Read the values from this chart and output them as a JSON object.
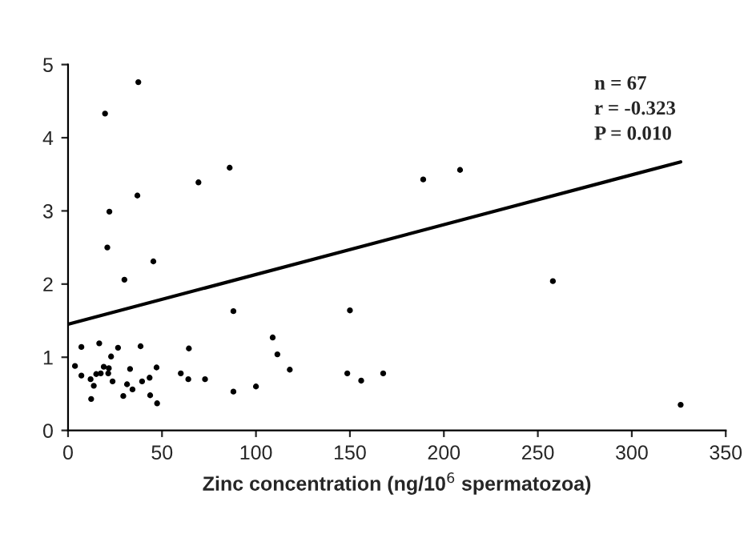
{
  "chart_data": {
    "type": "scatter",
    "xlabel": "Zinc concentration (ng/10$^{6}$ spermatozoa)",
    "xlim": [
      0,
      350
    ],
    "xticks": [
      0,
      50,
      100,
      150,
      200,
      250,
      300,
      350
    ],
    "ylim": [
      0,
      5
    ],
    "yticks": [
      0,
      1,
      2,
      3,
      4,
      5
    ],
    "grid": false,
    "annotations": [
      "n = 67\nr = -0.323\nP = 0.010"
    ],
    "series": [
      {
        "marker": "circle",
        "color": "#000000",
        "x": [
          3.7,
          7.1,
          7.1,
          12,
          13.7,
          12.3,
          16.6,
          15,
          17.4,
          19,
          19.7,
          20.9,
          22,
          21.7,
          21.4,
          22.9,
          23.7,
          26.6,
          29.4,
          30,
          31.4,
          33,
          34.3,
          36.9,
          37.4,
          38.6,
          39.4,
          43.4,
          43.7,
          45.4,
          47.1,
          47.4,
          60,
          64,
          64.3,
          69.4,
          72.9,
          86,
          88,
          88,
          100,
          108.9,
          111.4,
          118,
          148.6,
          150,
          156,
          167.7,
          189,
          208.6,
          258,
          326
        ],
        "values": [
          0.88,
          1.14,
          0.75,
          0.7,
          0.61,
          0.43,
          1.19,
          0.77,
          0.78,
          0.87,
          4.33,
          2.5,
          2.99,
          0.85,
          0.78,
          1.01,
          0.67,
          1.13,
          0.47,
          2.06,
          0.63,
          0.84,
          0.56,
          3.21,
          4.76,
          1.15,
          0.67,
          0.72,
          0.48,
          2.31,
          0.86,
          0.37,
          0.78,
          0.7,
          1.12,
          3.39,
          0.7,
          3.59,
          1.63,
          0.53,
          0.6,
          1.27,
          1.04,
          0.83,
          0.78,
          1.64,
          0.68,
          0.78,
          3.43,
          3.56,
          2.04,
          0.35
        ]
      },
      {
        "type": "line",
        "color": "#000000",
        "x": [
          0,
          326
        ],
        "values": [
          1.45,
          3.67
        ]
      }
    ]
  }
}
